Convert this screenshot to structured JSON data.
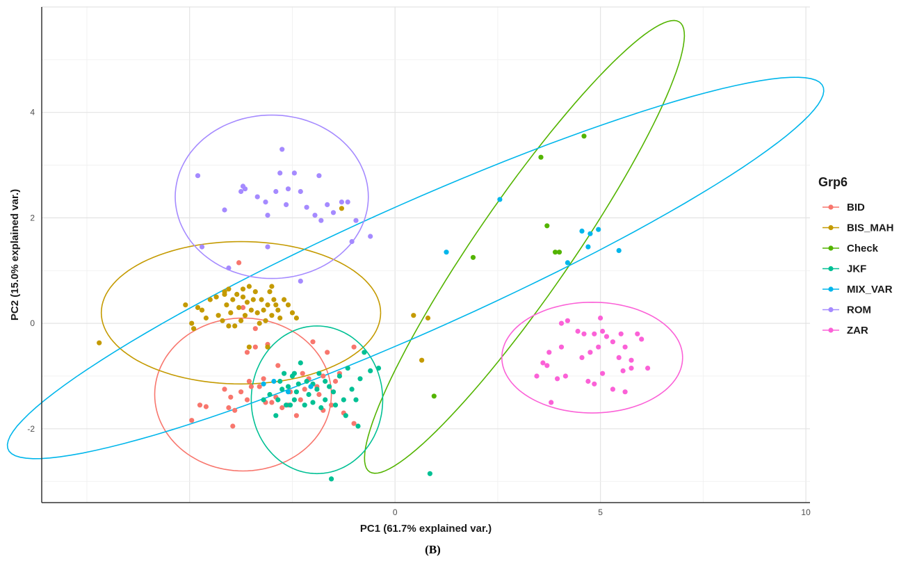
{
  "chart_data": {
    "type": "scatter",
    "xlabel": "PC1 (61.7% explained var.)",
    "ylabel": "PC2 (15.0% explained var.)",
    "xlim": [
      -8.6,
      10.1
    ],
    "ylim": [
      -3.4,
      6.0
    ],
    "x_ticks": [
      0,
      5,
      10
    ],
    "x_tick_labels": [
      "0",
      "5",
      "10"
    ],
    "y_ticks": [
      -2,
      0,
      2,
      4
    ],
    "y_tick_labels": [
      "-2",
      "0",
      "2",
      "4"
    ],
    "grid": true,
    "legend_title": "Grp6",
    "legend_position": "right",
    "panel_label": "(B)",
    "series": [
      {
        "name": "BID",
        "color": "#F8766D",
        "points": [
          [
            -4.95,
            -1.84
          ],
          [
            -4.75,
            -1.55
          ],
          [
            -4.6,
            -1.58
          ],
          [
            -4.05,
            -1.6
          ],
          [
            -3.9,
            -1.65
          ],
          [
            -3.75,
            -1.3
          ],
          [
            -3.6,
            -1.45
          ],
          [
            -3.5,
            -1.2
          ],
          [
            -3.3,
            -1.2
          ],
          [
            -3.15,
            -1.5
          ],
          [
            -3.0,
            -1.5
          ],
          [
            -2.9,
            -1.4
          ],
          [
            -2.85,
            -0.8
          ],
          [
            -2.55,
            -1.3
          ],
          [
            -2.4,
            -1.75
          ],
          [
            -2.2,
            -1.25
          ],
          [
            -2.1,
            -1.05
          ],
          [
            -3.95,
            -1.95
          ],
          [
            -3.6,
            -0.55
          ],
          [
            -3.4,
            -0.45
          ],
          [
            -2.75,
            -1.6
          ],
          [
            -2.6,
            -1.55
          ],
          [
            -2.3,
            -1.45
          ],
          [
            -1.9,
            -1.2
          ],
          [
            -1.75,
            -1.0
          ],
          [
            -1.45,
            -1.1
          ],
          [
            -1.65,
            -0.55
          ],
          [
            -2.0,
            -0.35
          ],
          [
            -1.75,
            -1.65
          ],
          [
            -1.55,
            -1.55
          ],
          [
            -1.25,
            -1.7
          ],
          [
            -1.0,
            -0.45
          ],
          [
            -1.0,
            -1.9
          ],
          [
            -3.8,
            1.15
          ],
          [
            -3.7,
            0.3
          ],
          [
            -3.4,
            -0.1
          ],
          [
            -3.1,
            -0.4
          ],
          [
            -3.2,
            -1.05
          ],
          [
            -4.15,
            -1.25
          ],
          [
            -4.0,
            -1.4
          ],
          [
            -3.55,
            -1.1
          ],
          [
            -2.25,
            -0.95
          ],
          [
            -1.85,
            -1.35
          ],
          [
            -1.35,
            -0.95
          ]
        ]
      },
      {
        "name": "BIS_MAH",
        "color": "#C49A00",
        "points": [
          [
            -7.2,
            -0.37
          ],
          [
            -5.1,
            0.35
          ],
          [
            -4.95,
            0.0
          ],
          [
            -4.9,
            -0.1
          ],
          [
            -4.8,
            0.3
          ],
          [
            -4.7,
            0.25
          ],
          [
            -4.6,
            0.1
          ],
          [
            -4.5,
            0.45
          ],
          [
            -4.35,
            0.5
          ],
          [
            -4.3,
            0.15
          ],
          [
            -4.2,
            0.05
          ],
          [
            -4.15,
            0.6
          ],
          [
            -4.1,
            0.35
          ],
          [
            -4.05,
            0.65
          ],
          [
            -4.0,
            0.2
          ],
          [
            -3.95,
            0.45
          ],
          [
            -3.9,
            -0.05
          ],
          [
            -3.85,
            0.55
          ],
          [
            -3.8,
            0.3
          ],
          [
            -3.75,
            0.05
          ],
          [
            -3.7,
            0.5
          ],
          [
            -3.65,
            0.15
          ],
          [
            -3.6,
            0.4
          ],
          [
            -3.55,
            0.7
          ],
          [
            -3.5,
            0.25
          ],
          [
            -3.45,
            0.45
          ],
          [
            -3.4,
            0.6
          ],
          [
            -3.35,
            0.2
          ],
          [
            -3.3,
            0.0
          ],
          [
            -3.25,
            0.45
          ],
          [
            -3.2,
            0.25
          ],
          [
            -3.15,
            0.05
          ],
          [
            -3.1,
            0.35
          ],
          [
            -3.05,
            0.6
          ],
          [
            -3.0,
            0.15
          ],
          [
            -2.95,
            0.45
          ],
          [
            -2.9,
            0.35
          ],
          [
            -2.85,
            0.25
          ],
          [
            -2.8,
            0.1
          ],
          [
            -2.7,
            0.45
          ],
          [
            -2.6,
            0.35
          ],
          [
            -2.5,
            0.2
          ],
          [
            -2.4,
            0.1
          ],
          [
            -3.1,
            -0.45
          ],
          [
            -4.05,
            -0.05
          ],
          [
            -3.55,
            -0.45
          ],
          [
            -1.3,
            2.18
          ],
          [
            0.45,
            0.15
          ],
          [
            0.8,
            0.1
          ],
          [
            0.65,
            -0.7
          ],
          [
            -3.7,
            0.65
          ],
          [
            -4.15,
            0.55
          ],
          [
            -3.0,
            0.7
          ]
        ]
      },
      {
        "name": "Check",
        "color": "#53B400",
        "points": [
          [
            4.6,
            3.55
          ],
          [
            3.55,
            3.15
          ],
          [
            3.7,
            1.85
          ],
          [
            1.9,
            1.25
          ],
          [
            3.9,
            1.35
          ],
          [
            4.0,
            1.35
          ],
          [
            0.95,
            -1.38
          ]
        ]
      },
      {
        "name": "JKF",
        "color": "#00C094",
        "points": [
          [
            -3.2,
            -1.45
          ],
          [
            -3.05,
            -1.35
          ],
          [
            -2.9,
            -1.75
          ],
          [
            -2.8,
            -1.1
          ],
          [
            -2.75,
            -1.25
          ],
          [
            -2.7,
            -0.95
          ],
          [
            -2.65,
            -1.55
          ],
          [
            -2.6,
            -1.2
          ],
          [
            -2.5,
            -1.0
          ],
          [
            -2.45,
            -1.45
          ],
          [
            -2.4,
            -1.3
          ],
          [
            -2.35,
            -1.15
          ],
          [
            -2.3,
            -0.75
          ],
          [
            -2.2,
            -1.55
          ],
          [
            -2.15,
            -1.1
          ],
          [
            -2.1,
            -1.35
          ],
          [
            -2.0,
            -1.5
          ],
          [
            -1.9,
            -1.25
          ],
          [
            -1.85,
            -0.95
          ],
          [
            -1.8,
            -1.6
          ],
          [
            -1.7,
            -1.45
          ],
          [
            -1.6,
            -1.2
          ],
          [
            -1.5,
            -1.3
          ],
          [
            -1.45,
            -1.55
          ],
          [
            -1.35,
            -1.0
          ],
          [
            -1.25,
            -1.45
          ],
          [
            -1.15,
            -0.85
          ],
          [
            -1.05,
            -1.25
          ],
          [
            -0.95,
            -1.45
          ],
          [
            -0.85,
            -1.05
          ],
          [
            -0.75,
            -0.55
          ],
          [
            -0.6,
            -0.9
          ],
          [
            -0.4,
            -0.85
          ],
          [
            -1.7,
            -1.1
          ],
          [
            -2.45,
            -0.95
          ],
          [
            -2.55,
            -1.55
          ],
          [
            -1.2,
            -1.75
          ],
          [
            -0.9,
            -1.95
          ],
          [
            -1.55,
            -2.95
          ],
          [
            0.85,
            -2.85
          ],
          [
            -2.0,
            -1.15
          ],
          [
            -2.85,
            -1.45
          ]
        ]
      },
      {
        "name": "MIX_VAR",
        "color": "#00B6EB",
        "points": [
          [
            2.55,
            2.35
          ],
          [
            1.25,
            1.35
          ],
          [
            4.55,
            1.75
          ],
          [
            4.75,
            1.7
          ],
          [
            4.95,
            1.78
          ],
          [
            5.45,
            1.38
          ],
          [
            4.7,
            1.45
          ],
          [
            4.2,
            1.15
          ],
          [
            -3.2,
            -1.15
          ],
          [
            -2.95,
            -1.1
          ],
          [
            -2.05,
            -1.2
          ],
          [
            -2.6,
            -1.3
          ]
        ]
      },
      {
        "name": "ROM",
        "color": "#A58AFF",
        "points": [
          [
            -4.8,
            2.8
          ],
          [
            -4.15,
            2.15
          ],
          [
            -3.75,
            2.5
          ],
          [
            -3.7,
            2.6
          ],
          [
            -3.65,
            2.55
          ],
          [
            -3.35,
            2.4
          ],
          [
            -3.15,
            2.3
          ],
          [
            -3.1,
            2.05
          ],
          [
            -2.9,
            2.5
          ],
          [
            -2.8,
            2.85
          ],
          [
            -2.75,
            3.3
          ],
          [
            -2.65,
            2.25
          ],
          [
            -2.6,
            2.55
          ],
          [
            -2.45,
            2.85
          ],
          [
            -2.3,
            2.5
          ],
          [
            -2.15,
            2.2
          ],
          [
            -1.95,
            2.05
          ],
          [
            -1.85,
            2.8
          ],
          [
            -1.8,
            1.95
          ],
          [
            -1.65,
            2.25
          ],
          [
            -1.5,
            2.1
          ],
          [
            -1.3,
            2.3
          ],
          [
            -1.15,
            2.3
          ],
          [
            -1.05,
            1.55
          ],
          [
            -0.95,
            1.95
          ],
          [
            -0.6,
            1.65
          ],
          [
            -4.05,
            1.05
          ],
          [
            -2.3,
            0.8
          ],
          [
            -3.1,
            1.45
          ],
          [
            -4.7,
            1.45
          ]
        ]
      },
      {
        "name": "ZAR",
        "color": "#FB61D7",
        "points": [
          [
            4.05,
            0.0
          ],
          [
            4.2,
            0.05
          ],
          [
            4.45,
            -0.15
          ],
          [
            4.6,
            -0.2
          ],
          [
            4.75,
            -0.55
          ],
          [
            4.85,
            -0.2
          ],
          [
            4.95,
            -0.45
          ],
          [
            5.0,
            0.1
          ],
          [
            5.05,
            -0.15
          ],
          [
            5.15,
            -0.25
          ],
          [
            5.3,
            -0.35
          ],
          [
            5.5,
            -0.2
          ],
          [
            5.6,
            -0.45
          ],
          [
            5.75,
            -0.7
          ],
          [
            5.9,
            -0.2
          ],
          [
            5.45,
            -0.65
          ],
          [
            3.6,
            -0.75
          ],
          [
            3.7,
            -0.8
          ],
          [
            3.45,
            -1.0
          ],
          [
            3.95,
            -1.05
          ],
          [
            4.15,
            -1.0
          ],
          [
            4.7,
            -1.1
          ],
          [
            4.85,
            -1.15
          ],
          [
            5.05,
            -0.95
          ],
          [
            5.3,
            -1.25
          ],
          [
            5.55,
            -0.9
          ],
          [
            5.75,
            -0.85
          ],
          [
            6.15,
            -0.85
          ],
          [
            5.6,
            -1.3
          ],
          [
            3.8,
            -1.5
          ],
          [
            4.05,
            -0.45
          ],
          [
            4.55,
            -0.65
          ],
          [
            6.0,
            -0.3
          ],
          [
            3.75,
            -0.55
          ]
        ]
      }
    ],
    "ellipses": [
      {
        "group": "BID",
        "center": [
          -3.7,
          -1.35
        ],
        "semi_axes": [
          2.15,
          1.45
        ],
        "angle_deg": 0
      },
      {
        "group": "BIS_MAH",
        "center": [
          -3.75,
          0.2
        ],
        "semi_axes": [
          3.4,
          1.35
        ],
        "angle_deg": 0
      },
      {
        "group": "Check",
        "center": [
          3.15,
          1.45
        ],
        "semi_axes": [
          5.7,
          1.05
        ],
        "angle_deg": 48
      },
      {
        "group": "JKF",
        "center": [
          -1.9,
          -1.45
        ],
        "semi_axes": [
          1.6,
          1.4
        ],
        "angle_deg": 0
      },
      {
        "group": "MIX_VAR",
        "center": [
          0.5,
          1.05
        ],
        "semi_axes": [
          10.5,
          1.25
        ],
        "angle_deg": 19
      },
      {
        "group": "ROM",
        "center": [
          -3.0,
          2.4
        ],
        "semi_axes": [
          2.35,
          1.55
        ],
        "angle_deg": 0
      },
      {
        "group": "ZAR",
        "center": [
          4.8,
          -0.65
        ],
        "semi_axes": [
          2.2,
          1.05
        ],
        "angle_deg": 0
      }
    ]
  }
}
